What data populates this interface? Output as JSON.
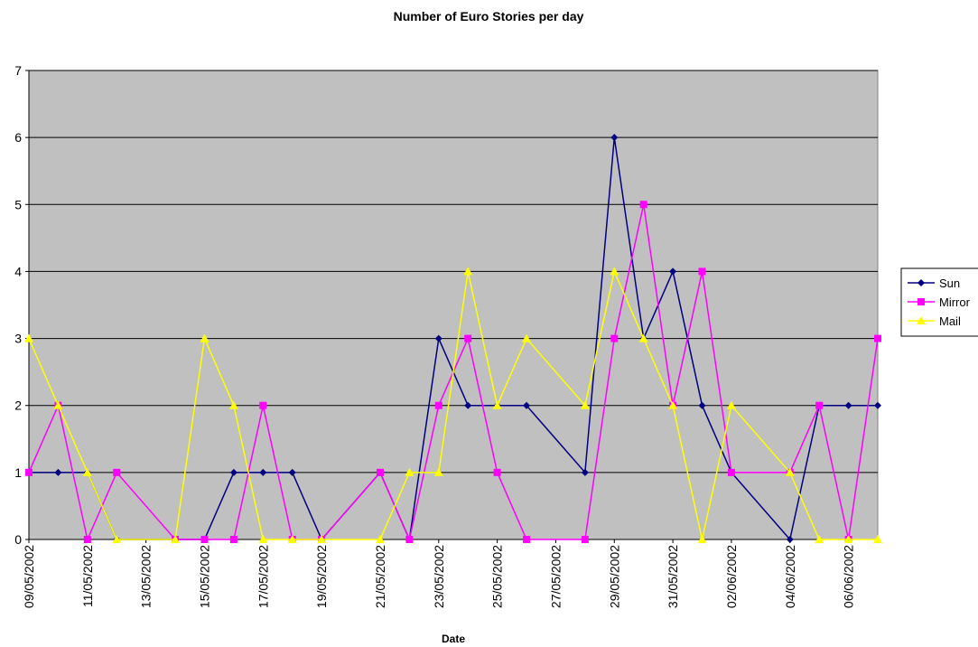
{
  "chart_data": {
    "type": "line",
    "title": "Number of Euro Stories per day",
    "xlabel": "Date",
    "ylabel": "",
    "ylim": [
      0,
      7
    ],
    "yticks": [
      0,
      1,
      2,
      3,
      4,
      5,
      6,
      7
    ],
    "grid": true,
    "legend": "right",
    "xlim": [
      "09/05/2002",
      "07/06/2002"
    ],
    "xtick_labels": [
      "09/05/2002",
      "11/05/2002",
      "13/05/2002",
      "15/05/2002",
      "17/05/2002",
      "19/05/2002",
      "21/05/2002",
      "23/05/2002",
      "25/05/2002",
      "27/05/2002",
      "29/05/2002",
      "31/05/2002",
      "02/06/2002",
      "04/06/2002",
      "06/06/2002"
    ],
    "colors": {
      "plot_background": "#c0c0c0"
    },
    "series": [
      {
        "name": "Sun",
        "color": "#000080",
        "marker": "diamond",
        "points": [
          [
            "09/05/2002",
            1
          ],
          [
            "10/05/2002",
            1
          ],
          [
            "11/05/2002",
            1
          ],
          [
            "12/05/2002",
            0
          ],
          [
            "14/05/2002",
            0
          ],
          [
            "15/05/2002",
            0
          ],
          [
            "16/05/2002",
            1
          ],
          [
            "17/05/2002",
            1
          ],
          [
            "18/05/2002",
            1
          ],
          [
            "19/05/2002",
            0
          ],
          [
            "21/05/2002",
            1
          ],
          [
            "22/05/2002",
            0
          ],
          [
            "23/05/2002",
            3
          ],
          [
            "24/05/2002",
            2
          ],
          [
            "25/05/2002",
            2
          ],
          [
            "26/05/2002",
            2
          ],
          [
            "28/05/2002",
            1
          ],
          [
            "29/05/2002",
            6
          ],
          [
            "30/05/2002",
            3
          ],
          [
            "31/05/2002",
            4
          ],
          [
            "01/06/2002",
            2
          ],
          [
            "02/06/2002",
            1
          ],
          [
            "04/06/2002",
            0
          ],
          [
            "05/06/2002",
            2
          ],
          [
            "06/06/2002",
            2
          ],
          [
            "07/06/2002",
            2
          ]
        ]
      },
      {
        "name": "Mirror",
        "color": "#ff00ff",
        "marker": "square",
        "points": [
          [
            "09/05/2002",
            1
          ],
          [
            "10/05/2002",
            2
          ],
          [
            "11/05/2002",
            0
          ],
          [
            "12/05/2002",
            1
          ],
          [
            "14/05/2002",
            0
          ],
          [
            "15/05/2002",
            0
          ],
          [
            "16/05/2002",
            0
          ],
          [
            "17/05/2002",
            2
          ],
          [
            "18/05/2002",
            0
          ],
          [
            "19/05/2002",
            0
          ],
          [
            "21/05/2002",
            1
          ],
          [
            "22/05/2002",
            0
          ],
          [
            "23/05/2002",
            2
          ],
          [
            "24/05/2002",
            3
          ],
          [
            "25/05/2002",
            1
          ],
          [
            "26/05/2002",
            0
          ],
          [
            "28/05/2002",
            0
          ],
          [
            "29/05/2002",
            3
          ],
          [
            "30/05/2002",
            5
          ],
          [
            "31/05/2002",
            2
          ],
          [
            "01/06/2002",
            4
          ],
          [
            "02/06/2002",
            1
          ],
          [
            "04/06/2002",
            1
          ],
          [
            "05/06/2002",
            2
          ],
          [
            "06/06/2002",
            0
          ],
          [
            "07/06/2002",
            3
          ]
        ]
      },
      {
        "name": "Mail",
        "color": "#ffff00",
        "marker": "triangle",
        "points": [
          [
            "09/05/2002",
            3
          ],
          [
            "10/05/2002",
            2
          ],
          [
            "11/05/2002",
            1
          ],
          [
            "12/05/2002",
            0
          ],
          [
            "14/05/2002",
            0
          ],
          [
            "15/05/2002",
            3
          ],
          [
            "16/05/2002",
            2
          ],
          [
            "17/05/2002",
            0
          ],
          [
            "18/05/2002",
            0
          ],
          [
            "19/05/2002",
            0
          ],
          [
            "21/05/2002",
            0
          ],
          [
            "22/05/2002",
            1
          ],
          [
            "23/05/2002",
            1
          ],
          [
            "24/05/2002",
            4
          ],
          [
            "25/05/2002",
            2
          ],
          [
            "26/05/2002",
            3
          ],
          [
            "28/05/2002",
            2
          ],
          [
            "29/05/2002",
            4
          ],
          [
            "30/05/2002",
            3
          ],
          [
            "31/05/2002",
            2
          ],
          [
            "01/06/2002",
            0
          ],
          [
            "02/06/2002",
            2
          ],
          [
            "04/06/2002",
            1
          ],
          [
            "05/06/2002",
            0
          ],
          [
            "06/06/2002",
            0
          ],
          [
            "07/06/2002",
            0
          ]
        ]
      }
    ]
  }
}
